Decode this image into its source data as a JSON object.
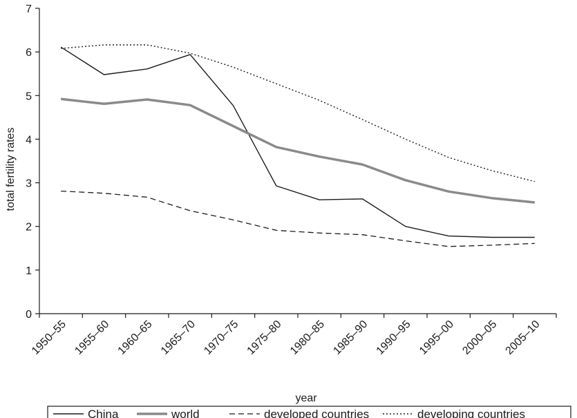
{
  "chart_data": {
    "type": "line",
    "title": "",
    "xlabel": "year",
    "ylabel": "total fertility rates",
    "ylim": [
      0,
      7
    ],
    "yticks": [
      0,
      1,
      2,
      3,
      4,
      5,
      6,
      7
    ],
    "categories": [
      "1950–55",
      "1955–60",
      "1960–65",
      "1965–70",
      "1970–75",
      "1975–80",
      "1980–85",
      "1985–90",
      "1990–95",
      "1995–00",
      "2000–05",
      "2005–10"
    ],
    "legend_position": "bottom",
    "grid": false,
    "series": [
      {
        "name": "China",
        "style": "solid-thin",
        "color": "#1a1a1a",
        "values": [
          6.11,
          5.48,
          5.61,
          5.94,
          4.77,
          2.93,
          2.61,
          2.63,
          2.0,
          1.78,
          1.75,
          1.75
        ]
      },
      {
        "name": "world",
        "style": "solid-thick",
        "color": "#8a8a8a",
        "values": [
          4.92,
          4.81,
          4.91,
          4.78,
          4.3,
          3.82,
          3.6,
          3.42,
          3.06,
          2.8,
          2.65,
          2.55
        ]
      },
      {
        "name": "developed countries",
        "style": "dashed",
        "color": "#1a1a1a",
        "values": [
          2.81,
          2.76,
          2.67,
          2.36,
          2.15,
          1.91,
          1.85,
          1.81,
          1.67,
          1.54,
          1.57,
          1.61
        ]
      },
      {
        "name": "developing countries",
        "style": "dotted",
        "color": "#1a1a1a",
        "values": [
          6.08,
          6.16,
          6.16,
          5.97,
          5.65,
          5.27,
          4.89,
          4.45,
          4.0,
          3.58,
          3.28,
          3.03
        ]
      }
    ]
  }
}
